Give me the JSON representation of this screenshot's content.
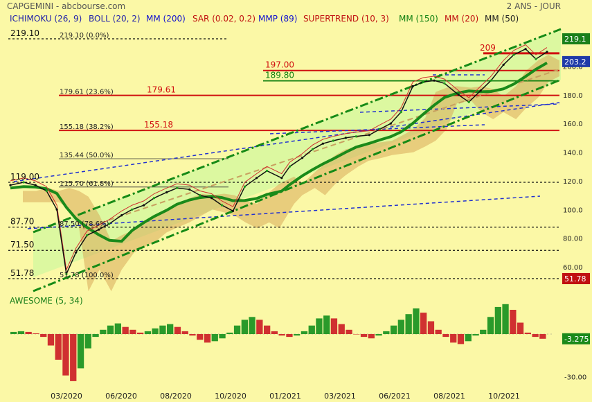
{
  "header": {
    "title": "CAPGEMINI - abcbourse.com",
    "period": "2 ANS - JOUR"
  },
  "indicators": [
    {
      "label": "ICHIMOKU (26, 9)",
      "color": "#2222AA"
    },
    {
      "label": "BOLL (20, 2)",
      "color": "#2222AA"
    },
    {
      "label": "MM (200)",
      "color": "#1010D0"
    },
    {
      "label": "SAR (0.02, 0.2)",
      "color": "#C01010"
    },
    {
      "label": "MMP (89)",
      "color": "#1010D0"
    },
    {
      "label": "SUPERTREND (10, 3)",
      "color": "#C01010"
    },
    {
      "label": "MM (150)",
      "color": "#108010"
    },
    {
      "label": "MM (20)",
      "color": "#C01010"
    },
    {
      "label": "MM (50)",
      "color": "#222222"
    }
  ],
  "chart_data": [
    {
      "type": "line",
      "title": "CAPGEMINI",
      "xlabels": [
        "03/2020",
        "06/2020",
        "08/2020",
        "10/2020",
        "01/2021",
        "03/2021",
        "06/2021",
        "08/2021",
        "10/2021"
      ],
      "ylim": [
        45,
        230
      ],
      "yticks": [
        60,
        80,
        100,
        120,
        140,
        160,
        180,
        200
      ],
      "yticks_labels": [
        "60.00",
        "80.00",
        "100.0",
        "120.0",
        "140.0",
        "160.0",
        "180.0",
        "200.0"
      ],
      "series": [
        {
          "name": "Close",
          "x": [
            "2020-01-02",
            "2020-01-20",
            "2020-02-05",
            "2020-02-20",
            "2020-03-05",
            "2020-03-18",
            "2020-03-31",
            "2020-04-15",
            "2020-05-01",
            "2020-05-15",
            "2020-06-01",
            "2020-06-15",
            "2020-07-01",
            "2020-07-15",
            "2020-08-01",
            "2020-08-15",
            "2020-09-01",
            "2020-09-15",
            "2020-10-01",
            "2020-10-15",
            "2020-10-30",
            "2020-11-15",
            "2020-12-01",
            "2020-12-15",
            "2021-01-04",
            "2021-01-15",
            "2021-02-01",
            "2021-02-15",
            "2021-03-01",
            "2021-03-15",
            "2021-04-01",
            "2021-04-15",
            "2021-05-03",
            "2021-05-17",
            "2021-06-01",
            "2021-06-15",
            "2021-07-01",
            "2021-07-15",
            "2021-07-30",
            "2021-08-13",
            "2021-09-01",
            "2021-09-15",
            "2021-10-01",
            "2021-10-15",
            "2021-11-01",
            "2021-11-15",
            "2021-12-01",
            "2021-12-15",
            "2021-12-30"
          ],
          "values": [
            117,
            119,
            117,
            113,
            100,
            55,
            70,
            82,
            86,
            90,
            96,
            100,
            103,
            108,
            112,
            115,
            114,
            110,
            108,
            103,
            99,
            116,
            122,
            127,
            122,
            130,
            136,
            142,
            146,
            148,
            150,
            151,
            152,
            156,
            160,
            168,
            186,
            189,
            190,
            188,
            180,
            175,
            183,
            190,
            201,
            208,
            212,
            205,
            210
          ]
        }
      ],
      "horizontal_levels": [
        {
          "label": "219.10",
          "value": 219.1
        },
        {
          "label": "197.00",
          "value": 197
        },
        {
          "label": "189.80",
          "value": 189.8
        },
        {
          "label": "179.61",
          "value": 179.61
        },
        {
          "label": "155.18",
          "value": 155.18
        },
        {
          "label": "119.00",
          "value": 119
        },
        {
          "label": "87.70",
          "value": 87.7
        },
        {
          "label": "71.50",
          "value": 71.5
        },
        {
          "label": "51.78",
          "value": 51.78
        },
        {
          "label": "209",
          "value": 209
        }
      ],
      "fibonacci": [
        {
          "label": "219.10  (0.0%)",
          "value": 219.1
        },
        {
          "label": "179.61  (23.6%)",
          "value": 179.61
        },
        {
          "label": "155.18  (38.2%)",
          "value": 155.18
        },
        {
          "label": "135.44  (50.0%)",
          "value": 135.44
        },
        {
          "label": "115.70  (61.8%)",
          "value": 115.7
        },
        {
          "label": "87.50  (78.6%)",
          "value": 87.5
        },
        {
          "label": "51.78  (100.0%)",
          "value": 51.78
        }
      ],
      "right_badges": [
        {
          "label": "219.1",
          "value": 219.1,
          "color": "#1A7F1A"
        },
        {
          "label": "203.2",
          "value": 203.2,
          "color": "#1E3AA8"
        },
        {
          "label": "51.78",
          "value": 51.78,
          "color": "#C01010"
        }
      ],
      "grid": false
    },
    {
      "type": "bar",
      "title": "AWESOME (5, 34)",
      "ylim": [
        -35,
        22
      ],
      "yticks_labels": [
        "-30.00"
      ],
      "last_value_label": "-3.275",
      "values": [
        1.5,
        2,
        1.5,
        0.5,
        -2,
        -8,
        -18,
        -29,
        -33,
        -24,
        -10,
        -2,
        3,
        6,
        7.5,
        5,
        3,
        1,
        2,
        4,
        6,
        7,
        5,
        2,
        -1,
        -4,
        -6,
        -5,
        -3,
        1,
        6,
        10,
        12,
        10,
        6,
        2,
        -1,
        -2,
        -1,
        2,
        6,
        11,
        13,
        11,
        7,
        3,
        0,
        -2,
        -3,
        -1,
        2,
        6,
        10,
        14,
        18,
        15,
        9,
        3,
        -2,
        -6,
        -7,
        -5,
        -1,
        3,
        12,
        19,
        21,
        17,
        8,
        1,
        -2,
        -3.3
      ]
    }
  ]
}
